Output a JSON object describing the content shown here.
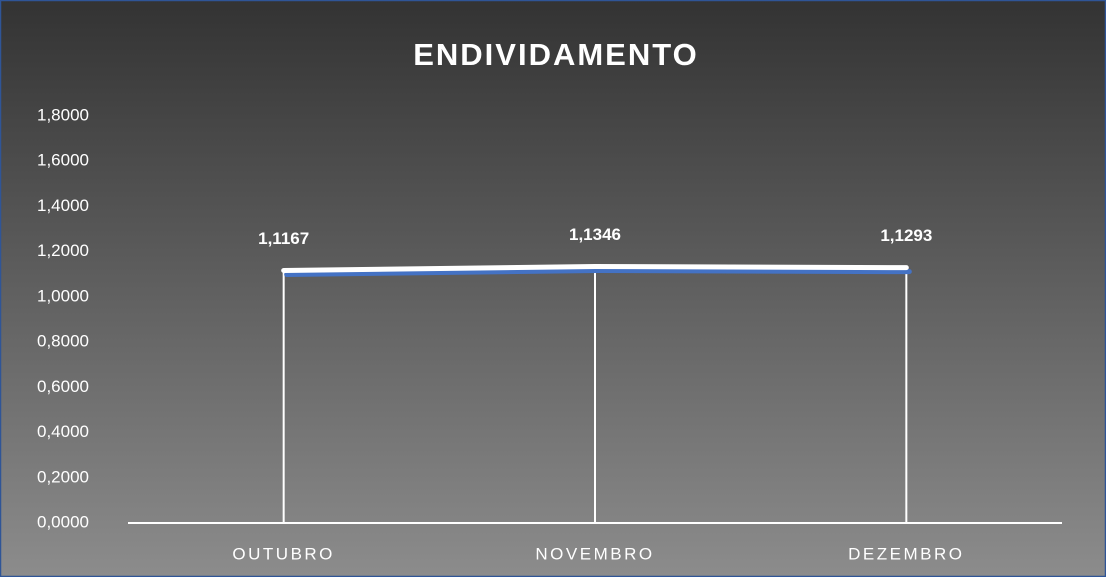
{
  "chart_data": {
    "type": "line",
    "title": "ENDIVIDAMENTO",
    "categories": [
      "OUTUBRO",
      "NOVEMBRO",
      "DEZEMBRO"
    ],
    "values": [
      1.1167,
      1.1346,
      1.1293
    ],
    "value_labels": [
      "1,1167",
      "1,1346",
      "1,1293"
    ],
    "color": "#ffffff",
    "ylim": [
      0,
      1.8
    ],
    "yticks": [
      {
        "value": 0,
        "label": "0,0000"
      },
      {
        "value": 0.2,
        "label": "0,2000"
      },
      {
        "value": 0.4,
        "label": "0,4000"
      },
      {
        "value": 0.6,
        "label": "0,6000"
      },
      {
        "value": 0.8,
        "label": "0,8000"
      },
      {
        "value": 1.0,
        "label": "1,0000"
      },
      {
        "value": 1.2,
        "label": "1,2000"
      },
      {
        "value": 1.4,
        "label": "1,4000"
      },
      {
        "value": 1.6,
        "label": "1,6000"
      },
      {
        "value": 1.8,
        "label": "1,8000"
      }
    ],
    "grid": false
  }
}
